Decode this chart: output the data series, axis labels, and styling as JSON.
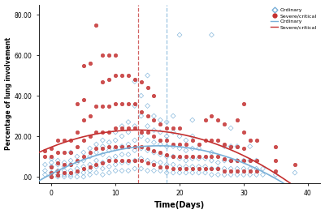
{
  "xlabel": "Time(Days)",
  "ylabel": "Percentage of lung involvement",
  "xlim": [
    -2,
    42
  ],
  "ylim": [
    -3,
    85
  ],
  "yticks": [
    0.0,
    20.0,
    40.0,
    60.0,
    80.0
  ],
  "ytick_labels": [
    ".00",
    "20.00",
    "40.00",
    "60.00",
    "80.00"
  ],
  "xticks": [
    0,
    10,
    20,
    30,
    40
  ],
  "vline_red": 13.5,
  "vline_blue": 18.0,
  "ordinary_color": "#7ab0d8",
  "severe_color": "#c43030",
  "background_color": "#ffffff",
  "marker_size_ord": 9,
  "marker_size_sev": 10,
  "line_width": 1.2,
  "ordinary_scatter": [
    [
      -1,
      1
    ],
    [
      -1,
      3
    ],
    [
      -1,
      6
    ],
    [
      0,
      0
    ],
    [
      0,
      2
    ],
    [
      0,
      5
    ],
    [
      0,
      7
    ],
    [
      0,
      9
    ],
    [
      1,
      0
    ],
    [
      1,
      1
    ],
    [
      1,
      3
    ],
    [
      1,
      6
    ],
    [
      1,
      8
    ],
    [
      2,
      0
    ],
    [
      2,
      1
    ],
    [
      2,
      3
    ],
    [
      2,
      5
    ],
    [
      2,
      7
    ],
    [
      3,
      0
    ],
    [
      3,
      1
    ],
    [
      3,
      3
    ],
    [
      3,
      6
    ],
    [
      3,
      8
    ],
    [
      3,
      12
    ],
    [
      4,
      0
    ],
    [
      4,
      2
    ],
    [
      4,
      4
    ],
    [
      4,
      7
    ],
    [
      4,
      10
    ],
    [
      5,
      0
    ],
    [
      5,
      2
    ],
    [
      5,
      5
    ],
    [
      5,
      8
    ],
    [
      5,
      12
    ],
    [
      6,
      1
    ],
    [
      6,
      3
    ],
    [
      6,
      6
    ],
    [
      6,
      10
    ],
    [
      6,
      14
    ],
    [
      7,
      2
    ],
    [
      7,
      5
    ],
    [
      7,
      8
    ],
    [
      7,
      12
    ],
    [
      7,
      16
    ],
    [
      8,
      1
    ],
    [
      8,
      4
    ],
    [
      8,
      7
    ],
    [
      8,
      11
    ],
    [
      8,
      15
    ],
    [
      8,
      18
    ],
    [
      9,
      2
    ],
    [
      9,
      5
    ],
    [
      9,
      9
    ],
    [
      9,
      13
    ],
    [
      9,
      17
    ],
    [
      10,
      3
    ],
    [
      10,
      6
    ],
    [
      10,
      10
    ],
    [
      10,
      14
    ],
    [
      10,
      18
    ],
    [
      10,
      22
    ],
    [
      11,
      3
    ],
    [
      11,
      7
    ],
    [
      11,
      11
    ],
    [
      11,
      15
    ],
    [
      11,
      20
    ],
    [
      11,
      25
    ],
    [
      12,
      3
    ],
    [
      12,
      7
    ],
    [
      12,
      11
    ],
    [
      12,
      16
    ],
    [
      12,
      22
    ],
    [
      12,
      27
    ],
    [
      13,
      4
    ],
    [
      13,
      8
    ],
    [
      13,
      13
    ],
    [
      13,
      18
    ],
    [
      13,
      25
    ],
    [
      13,
      35
    ],
    [
      13,
      47
    ],
    [
      14,
      4
    ],
    [
      14,
      9
    ],
    [
      14,
      14
    ],
    [
      14,
      20
    ],
    [
      14,
      30
    ],
    [
      14,
      40
    ],
    [
      15,
      3
    ],
    [
      15,
      8
    ],
    [
      15,
      13
    ],
    [
      15,
      18
    ],
    [
      15,
      25
    ],
    [
      15,
      35
    ],
    [
      15,
      50
    ],
    [
      16,
      3
    ],
    [
      16,
      7
    ],
    [
      16,
      12
    ],
    [
      16,
      17
    ],
    [
      16,
      23
    ],
    [
      16,
      30
    ],
    [
      17,
      3
    ],
    [
      17,
      7
    ],
    [
      17,
      11
    ],
    [
      17,
      16
    ],
    [
      17,
      22
    ],
    [
      17,
      28
    ],
    [
      18,
      2
    ],
    [
      18,
      6
    ],
    [
      18,
      10
    ],
    [
      18,
      15
    ],
    [
      18,
      20
    ],
    [
      18,
      27
    ],
    [
      19,
      2
    ],
    [
      19,
      6
    ],
    [
      19,
      10
    ],
    [
      19,
      15
    ],
    [
      19,
      22
    ],
    [
      19,
      30
    ],
    [
      20,
      2
    ],
    [
      20,
      5
    ],
    [
      20,
      9
    ],
    [
      20,
      14
    ],
    [
      20,
      20
    ],
    [
      20,
      70
    ],
    [
      21,
      2
    ],
    [
      21,
      5
    ],
    [
      21,
      8
    ],
    [
      21,
      13
    ],
    [
      21,
      18
    ],
    [
      22,
      2
    ],
    [
      22,
      5
    ],
    [
      22,
      9
    ],
    [
      22,
      14
    ],
    [
      22,
      20
    ],
    [
      22,
      28
    ],
    [
      23,
      2
    ],
    [
      23,
      5
    ],
    [
      23,
      9
    ],
    [
      23,
      14
    ],
    [
      24,
      2
    ],
    [
      24,
      5
    ],
    [
      24,
      9
    ],
    [
      25,
      1
    ],
    [
      25,
      4
    ],
    [
      25,
      8
    ],
    [
      25,
      12
    ],
    [
      25,
      70
    ],
    [
      26,
      1
    ],
    [
      26,
      4
    ],
    [
      26,
      7
    ],
    [
      27,
      1
    ],
    [
      27,
      4
    ],
    [
      27,
      8
    ],
    [
      27,
      15
    ],
    [
      28,
      1
    ],
    [
      28,
      4
    ],
    [
      28,
      8
    ],
    [
      28,
      15
    ],
    [
      28,
      24
    ],
    [
      29,
      1
    ],
    [
      29,
      4
    ],
    [
      29,
      8
    ],
    [
      29,
      15
    ],
    [
      30,
      1
    ],
    [
      30,
      4
    ],
    [
      30,
      8
    ],
    [
      31,
      1
    ],
    [
      31,
      4
    ],
    [
      31,
      8
    ],
    [
      31,
      15
    ],
    [
      32,
      1
    ],
    [
      32,
      4
    ],
    [
      32,
      8
    ],
    [
      33,
      1
    ],
    [
      33,
      4
    ],
    [
      35,
      1
    ],
    [
      38,
      2
    ]
  ],
  "severe_scatter": [
    [
      -1,
      10
    ],
    [
      -1,
      13
    ],
    [
      0,
      0
    ],
    [
      0,
      2
    ],
    [
      0,
      5
    ],
    [
      0,
      10
    ],
    [
      0,
      14
    ],
    [
      1,
      1
    ],
    [
      1,
      3
    ],
    [
      1,
      7
    ],
    [
      1,
      12
    ],
    [
      1,
      18
    ],
    [
      2,
      2
    ],
    [
      2,
      6
    ],
    [
      2,
      12
    ],
    [
      2,
      18
    ],
    [
      3,
      2
    ],
    [
      3,
      6
    ],
    [
      3,
      12
    ],
    [
      3,
      18
    ],
    [
      4,
      3
    ],
    [
      4,
      8
    ],
    [
      4,
      15
    ],
    [
      4,
      22
    ],
    [
      4,
      36
    ],
    [
      5,
      4
    ],
    [
      5,
      10
    ],
    [
      5,
      18
    ],
    [
      5,
      28
    ],
    [
      5,
      38
    ],
    [
      5,
      55
    ],
    [
      6,
      5
    ],
    [
      6,
      12
    ],
    [
      6,
      20
    ],
    [
      6,
      30
    ],
    [
      6,
      56
    ],
    [
      7,
      6
    ],
    [
      7,
      14
    ],
    [
      7,
      22
    ],
    [
      7,
      35
    ],
    [
      7,
      75
    ],
    [
      8,
      7
    ],
    [
      8,
      14
    ],
    [
      8,
      22
    ],
    [
      8,
      35
    ],
    [
      8,
      47
    ],
    [
      8,
      60
    ],
    [
      9,
      8
    ],
    [
      9,
      15
    ],
    [
      9,
      22
    ],
    [
      9,
      35
    ],
    [
      9,
      48
    ],
    [
      9,
      60
    ],
    [
      10,
      8
    ],
    [
      10,
      15
    ],
    [
      10,
      24
    ],
    [
      10,
      36
    ],
    [
      10,
      50
    ],
    [
      10,
      60
    ],
    [
      11,
      8
    ],
    [
      11,
      15
    ],
    [
      11,
      24
    ],
    [
      11,
      36
    ],
    [
      11,
      50
    ],
    [
      12,
      8
    ],
    [
      12,
      15
    ],
    [
      12,
      24
    ],
    [
      12,
      36
    ],
    [
      12,
      50
    ],
    [
      13,
      8
    ],
    [
      13,
      15
    ],
    [
      13,
      24
    ],
    [
      13,
      36
    ],
    [
      13,
      48
    ],
    [
      14,
      8
    ],
    [
      14,
      15
    ],
    [
      14,
      22
    ],
    [
      14,
      32
    ],
    [
      14,
      47
    ],
    [
      15,
      7
    ],
    [
      15,
      14
    ],
    [
      15,
      22
    ],
    [
      15,
      30
    ],
    [
      15,
      44
    ],
    [
      16,
      6
    ],
    [
      16,
      13
    ],
    [
      16,
      20
    ],
    [
      16,
      28
    ],
    [
      16,
      40
    ],
    [
      17,
      5
    ],
    [
      17,
      12
    ],
    [
      17,
      18
    ],
    [
      17,
      26
    ],
    [
      18,
      5
    ],
    [
      18,
      11
    ],
    [
      18,
      18
    ],
    [
      18,
      24
    ],
    [
      19,
      4
    ],
    [
      19,
      10
    ],
    [
      19,
      16
    ],
    [
      19,
      24
    ],
    [
      20,
      4
    ],
    [
      20,
      10
    ],
    [
      20,
      16
    ],
    [
      20,
      24
    ],
    [
      21,
      4
    ],
    [
      21,
      10
    ],
    [
      21,
      16
    ],
    [
      22,
      4
    ],
    [
      22,
      10
    ],
    [
      22,
      18
    ],
    [
      23,
      4
    ],
    [
      23,
      10
    ],
    [
      23,
      16
    ],
    [
      24,
      4
    ],
    [
      24,
      10
    ],
    [
      24,
      18
    ],
    [
      24,
      28
    ],
    [
      25,
      4
    ],
    [
      25,
      10
    ],
    [
      25,
      18
    ],
    [
      25,
      30
    ],
    [
      26,
      4
    ],
    [
      26,
      10
    ],
    [
      26,
      18
    ],
    [
      26,
      28
    ],
    [
      27,
      3
    ],
    [
      27,
      9
    ],
    [
      27,
      16
    ],
    [
      27,
      26
    ],
    [
      28,
      3
    ],
    [
      28,
      8
    ],
    [
      28,
      15
    ],
    [
      29,
      3
    ],
    [
      29,
      8
    ],
    [
      29,
      15
    ],
    [
      29,
      28
    ],
    [
      30,
      3
    ],
    [
      30,
      8
    ],
    [
      30,
      14
    ],
    [
      30,
      22
    ],
    [
      30,
      36
    ],
    [
      31,
      3
    ],
    [
      31,
      8
    ],
    [
      31,
      18
    ],
    [
      32,
      3
    ],
    [
      32,
      8
    ],
    [
      32,
      18
    ],
    [
      35,
      3
    ],
    [
      35,
      8
    ],
    [
      35,
      15
    ],
    [
      38,
      6
    ]
  ]
}
